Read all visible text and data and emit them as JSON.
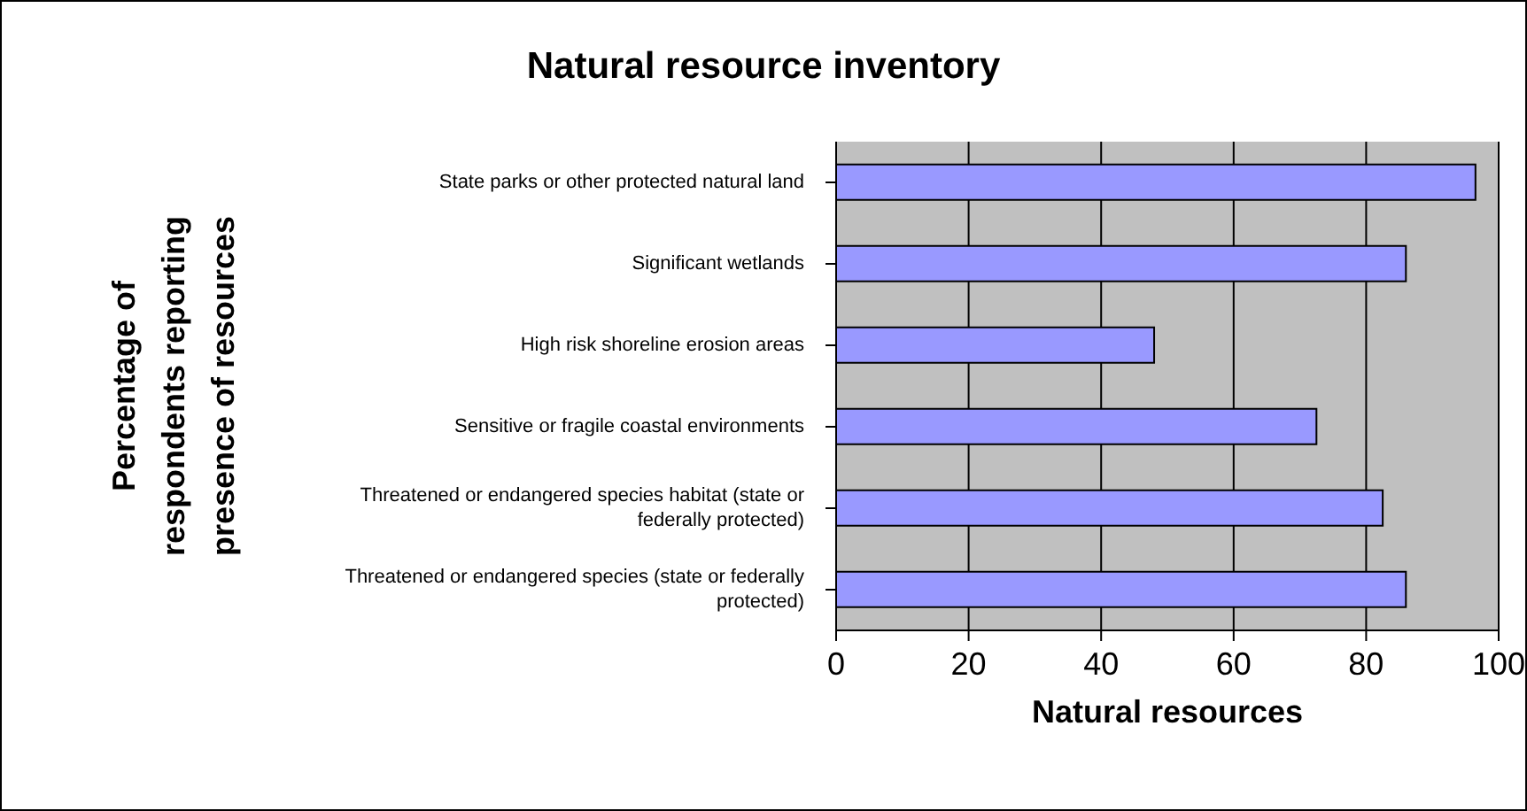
{
  "chart_data": {
    "type": "bar",
    "orientation": "horizontal",
    "title": "Natural resource inventory",
    "xlabel": "Natural resources",
    "ylabel": "Percentage of respondents reporting presence of resources",
    "categories": [
      "State parks or other protected natural land",
      "Significant wetlands",
      "High risk shoreline erosion areas",
      "Sensitive or fragile coastal environments",
      "Threatened or endangered species habitat (state or federally protected)",
      "Threatened or endangered species (state or federally protected)"
    ],
    "values": [
      96.5,
      86,
      48,
      72.5,
      82.5,
      86
    ],
    "color": "#9999ff",
    "xlim": [
      0,
      100
    ],
    "xticks": [
      0,
      20,
      40,
      60,
      80,
      100
    ],
    "grid": "x"
  }
}
